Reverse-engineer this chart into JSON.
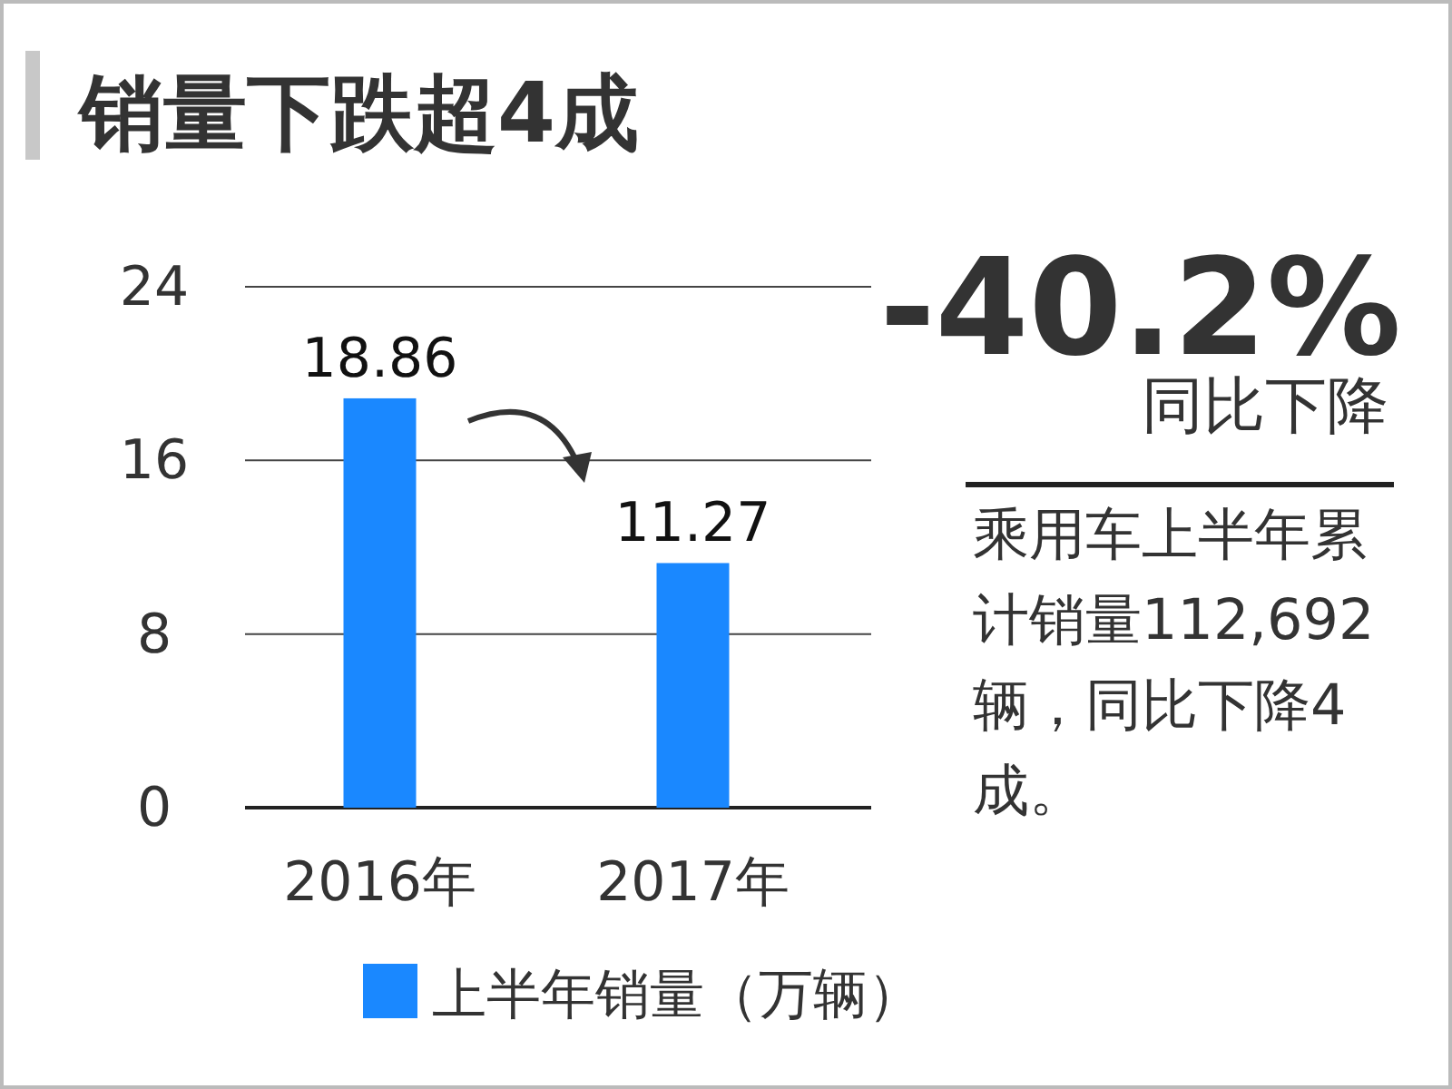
{
  "chart_data": {
    "type": "bar",
    "title": "销量下跌超4成",
    "categories": [
      "2016年",
      "2017年"
    ],
    "series": [
      {
        "name": "上半年销量（万辆）",
        "color": "#1a88ff",
        "values": [
          18.86,
          11.27
        ]
      }
    ],
    "ylim": [
      0,
      24
    ],
    "yticks": [
      0,
      8,
      16,
      24
    ],
    "grid": "y",
    "data_labels": true,
    "legend": "bottom",
    "annotations": [
      "-40.2%",
      "同比下降",
      "乘用车上半年累计销量112,692辆，同比下降4成。"
    ]
  }
}
